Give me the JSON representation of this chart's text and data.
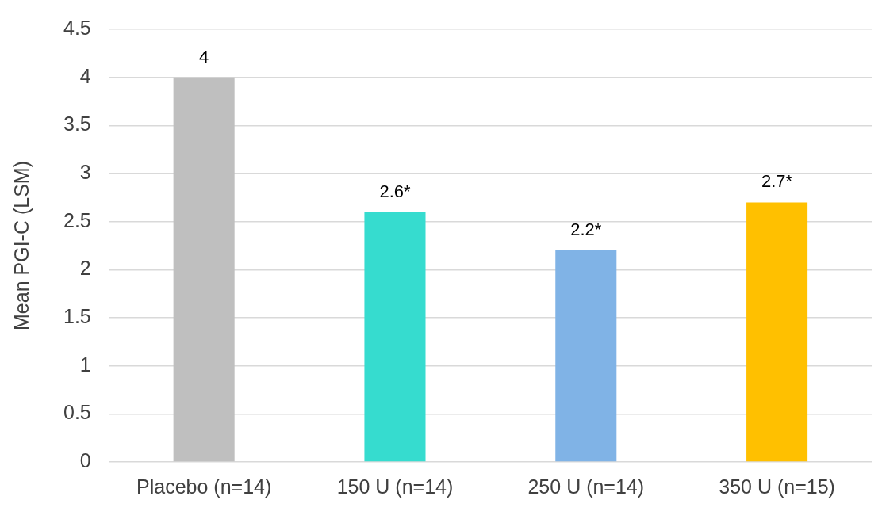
{
  "chart_data": {
    "type": "bar",
    "ylabel": "Mean PGI-C (LSM)",
    "categories": [
      "Placebo (n=14)",
      "150 U (n=14)",
      "250 U (n=14)",
      "350 U (n=15)"
    ],
    "values": [
      4,
      2.6,
      2.2,
      2.7
    ],
    "colors": [
      "#bfbfbf",
      "#36dccf",
      "#80b3e6",
      "#ffc000"
    ],
    "value_labels": [
      "4",
      "2.6*",
      "2.2*",
      "2.7*"
    ],
    "ylim": [
      0,
      4.5
    ],
    "yticks": [
      0,
      0.5,
      1,
      1.5,
      2,
      2.5,
      3,
      3.5,
      4,
      4.5
    ],
    "grid": "y",
    "legend": false
  }
}
